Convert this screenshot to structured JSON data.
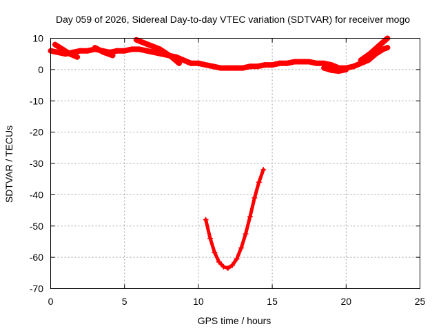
{
  "chart_data": {
    "type": "scatter",
    "title": "Day 059 of 2026, Sidereal Day-to-day VTEC variation (SDTVAR) for receiver mogo",
    "xlabel": "GPS time / hours",
    "ylabel": "SDTVAR / TECUs",
    "xlim": [
      0,
      25
    ],
    "ylim": [
      -70,
      10
    ],
    "xticks": [
      0,
      5,
      10,
      15,
      20,
      25
    ],
    "yticks": [
      10,
      0,
      -10,
      -20,
      -30,
      -40,
      -50,
      -60,
      -70
    ],
    "grid": true,
    "legend": "none",
    "color": "#ff0000",
    "series": [
      {
        "name": "main",
        "x": [
          0.0,
          0.5,
          1.0,
          1.5,
          2.0,
          2.5,
          3.0,
          3.5,
          4.0,
          4.5,
          5.0,
          5.5,
          6.0,
          6.5,
          7.0,
          7.5,
          8.0,
          8.5,
          9.0,
          9.5,
          10.0,
          10.5,
          11.0,
          11.5,
          12.0,
          12.5,
          13.0,
          13.5,
          14.0,
          14.5,
          15.0,
          15.5,
          16.0,
          16.5,
          17.0,
          17.5,
          18.0,
          18.5,
          19.0,
          19.5,
          20.0,
          20.5,
          21.0,
          21.5,
          22.0,
          22.5,
          22.8
        ],
        "y": [
          6,
          5.5,
          5,
          5.5,
          6,
          6,
          6.5,
          6,
          5.5,
          6,
          6,
          6.5,
          6.5,
          6,
          5.5,
          5,
          4.5,
          4,
          3,
          2,
          2,
          1.5,
          1,
          0.5,
          0.5,
          0.5,
          0.5,
          1,
          1,
          1.5,
          1.5,
          2,
          2,
          2.5,
          2.5,
          2.5,
          2,
          2,
          1.5,
          0.5,
          0.5,
          1,
          2,
          3,
          5,
          6.5,
          7
        ]
      },
      {
        "name": "branch-a",
        "x": [
          0.3,
          0.8,
          1.3,
          1.8
        ],
        "y": [
          8,
          6.5,
          5,
          4
        ]
      },
      {
        "name": "branch-b",
        "x": [
          3.0,
          3.6,
          4.2
        ],
        "y": [
          7,
          5.5,
          4.5
        ]
      },
      {
        "name": "branch-c",
        "x": [
          5.8,
          6.6,
          7.4,
          8.2,
          8.7
        ],
        "y": [
          9.5,
          8,
          6.5,
          4,
          2
        ]
      },
      {
        "name": "branch-d",
        "x": [
          18.5,
          19.0,
          19.5,
          20.0
        ],
        "y": [
          0.5,
          -0.2,
          -0.5,
          0
        ]
      },
      {
        "name": "branch-e",
        "x": [
          21.0,
          21.6,
          22.2,
          22.8
        ],
        "y": [
          3,
          5,
          7.5,
          10
        ]
      },
      {
        "name": "dip",
        "x": [
          10.5,
          10.8,
          11.1,
          11.4,
          11.7,
          12.0,
          12.3,
          12.6,
          12.9,
          13.2,
          13.5,
          13.8,
          14.1,
          14.4
        ],
        "y": [
          -48,
          -54,
          -58.5,
          -61.5,
          -63,
          -63.5,
          -62.5,
          -60.5,
          -57,
          -52.5,
          -47,
          -41,
          -36,
          -32
        ]
      }
    ]
  }
}
